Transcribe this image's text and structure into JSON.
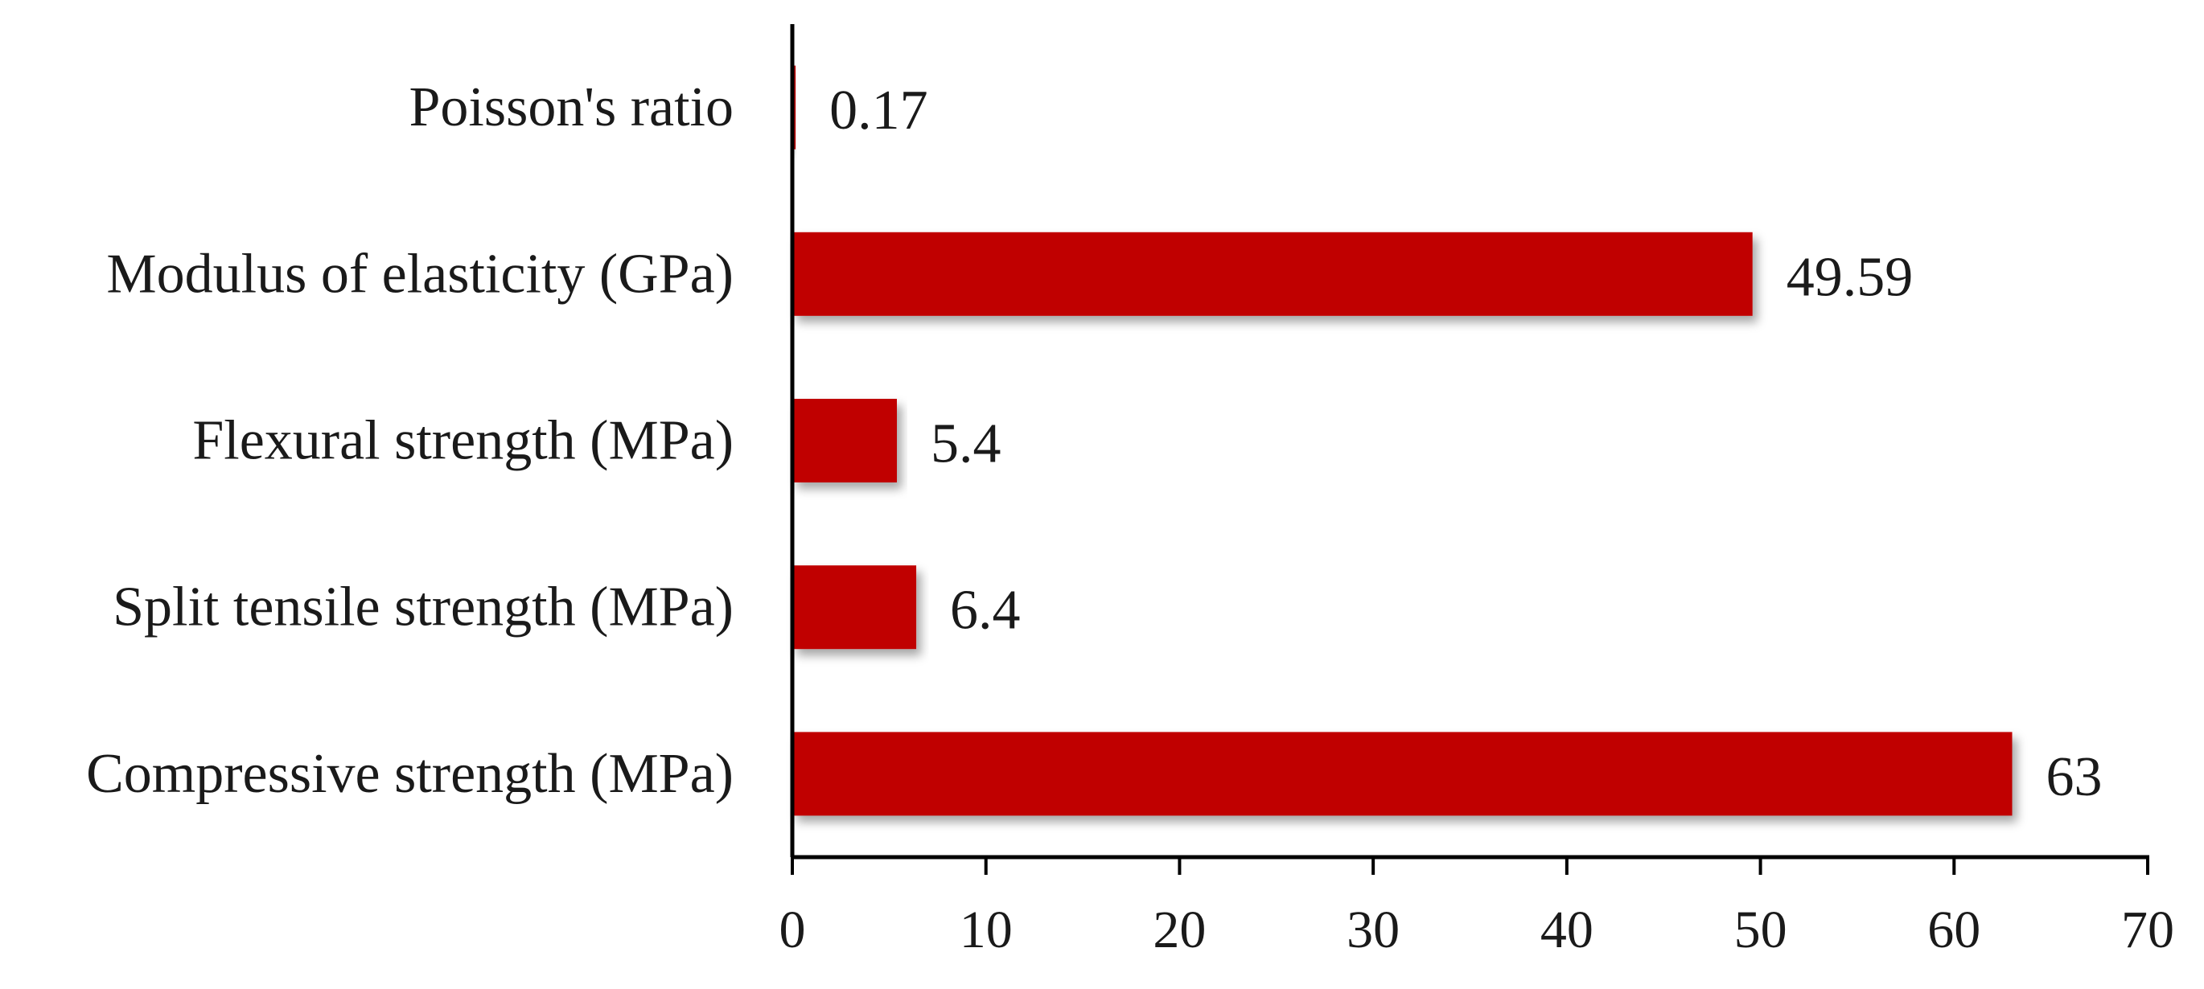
{
  "chart_data": {
    "type": "bar",
    "orientation": "horizontal",
    "categories": [
      "Poisson's ratio",
      "Modulus of elasticity (GPa)",
      "Flexural strength (MPa)",
      "Split tensile strength (MPa)",
      "Compressive strength (MPa)"
    ],
    "values": [
      0.17,
      49.59,
      5.4,
      6.4,
      63
    ],
    "value_labels": [
      "0.17",
      "49.59",
      "5.4",
      "6.4",
      "63"
    ],
    "xlim": [
      0,
      70
    ],
    "x_ticks": [
      "0",
      "10",
      "20",
      "30",
      "40",
      "50",
      "60",
      "70"
    ],
    "title": "",
    "xlabel": "",
    "ylabel": "",
    "grid": false,
    "legend": "none",
    "bar_color": "#c00000"
  }
}
